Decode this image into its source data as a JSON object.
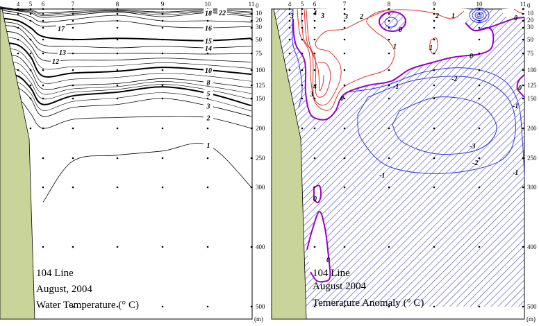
{
  "chart_data": [
    {
      "type": "contour",
      "panel": "water-temperature",
      "title_lines": [
        "104 Line",
        "August, 2004",
        "Water Temperature (° C)"
      ],
      "x_stations": [
        "4",
        "5",
        "6",
        "7",
        "8",
        "9",
        "10",
        "11"
      ],
      "y_ticks": [
        "0",
        "10",
        "20",
        "30",
        "50",
        "75",
        "100",
        "125",
        "150",
        "200",
        "250",
        "300",
        "400",
        "500"
      ],
      "y_unit": "(m)",
      "y_axis_direction": "depth increasing downward",
      "station_max_depth_m": [
        100,
        200,
        500,
        500,
        500,
        500,
        500,
        500
      ],
      "isotherms_depth_m_by_station": [
        {
          "level": "22",
          "bold": false,
          "depths": [
            1,
            2,
            8,
            5,
            2,
            6,
            2,
            6
          ]
        },
        {
          "level": "18",
          "bold": false,
          "depths": [
            4,
            8,
            15,
            12,
            6,
            14,
            8,
            14
          ]
        },
        {
          "level": "17",
          "bold": false,
          "depths": [
            8,
            14,
            22,
            18,
            12,
            20,
            20,
            22
          ]
        },
        {
          "level": "16",
          "bold": false,
          "depths": [
            12,
            20,
            28,
            25,
            20,
            28,
            30,
            28
          ]
        },
        {
          "level": "15",
          "bold": true,
          "depths": [
            20,
            30,
            45,
            50,
            48,
            50,
            52,
            48
          ]
        },
        {
          "level": "14",
          "bold": false,
          "depths": [
            25,
            40,
            60,
            62,
            65,
            62,
            65,
            62
          ]
        },
        {
          "level": "13",
          "bold": false,
          "depths": [
            30,
            50,
            72,
            75,
            75,
            75,
            76,
            75
          ]
        },
        {
          "level": "12",
          "bold": false,
          "depths": [
            40,
            60,
            85,
            85,
            85,
            82,
            85,
            88
          ]
        },
        {
          "level": "10",
          "bold": true,
          "depths": [
            60,
            80,
            110,
            105,
            102,
            96,
            100,
            107
          ]
        },
        {
          "level": "8",
          "bold": false,
          "depths": [
            80,
            100,
            132,
            125,
            122,
            114,
            120,
            130
          ]
        },
        {
          "level": "5",
          "bold": true,
          "depths": [
            110,
            130,
            160,
            145,
            138,
            128,
            140,
            162
          ]
        },
        {
          "level": "3",
          "bold": false,
          "depths": [
            130,
            150,
            180,
            165,
            160,
            150,
            162,
            180
          ]
        },
        {
          "level": "2",
          "bold": false,
          "depths": [
            150,
            175,
            200,
            185,
            182,
            180,
            182,
            200
          ]
        },
        {
          "level": "1",
          "bold": false,
          "depths": [
            null,
            null,
            325,
            255,
            245,
            238,
            228,
            300
          ]
        }
      ]
    },
    {
      "type": "contour",
      "panel": "temperature-anomaly",
      "title_lines": [
        "104 Line",
        "August 2004",
        "Temerature Anomaly (° C)"
      ],
      "x_stations": [
        "4",
        "5",
        "6",
        "7",
        "8",
        "9",
        "10",
        "11"
      ],
      "y_ticks": [
        "0",
        "10",
        "20",
        "30",
        "50",
        "75",
        "100",
        "125",
        "150",
        "200",
        "250",
        "300",
        "400",
        "500"
      ],
      "y_unit": "(m)",
      "shading": "hatched where anomaly < 0",
      "contour_labels": {
        "zero": "0",
        "pos1": "1",
        "pos2": "2",
        "pos3": "3",
        "pos4": "4",
        "neg1": "-1",
        "neg2": "-2",
        "neg3": "-3"
      },
      "colors": {
        "positive": "#e03030",
        "zero": "#9900cc",
        "negative": "#3030e0",
        "hatch": "#5050c8"
      }
    }
  ],
  "colors": {
    "land": "#c8d49a"
  }
}
